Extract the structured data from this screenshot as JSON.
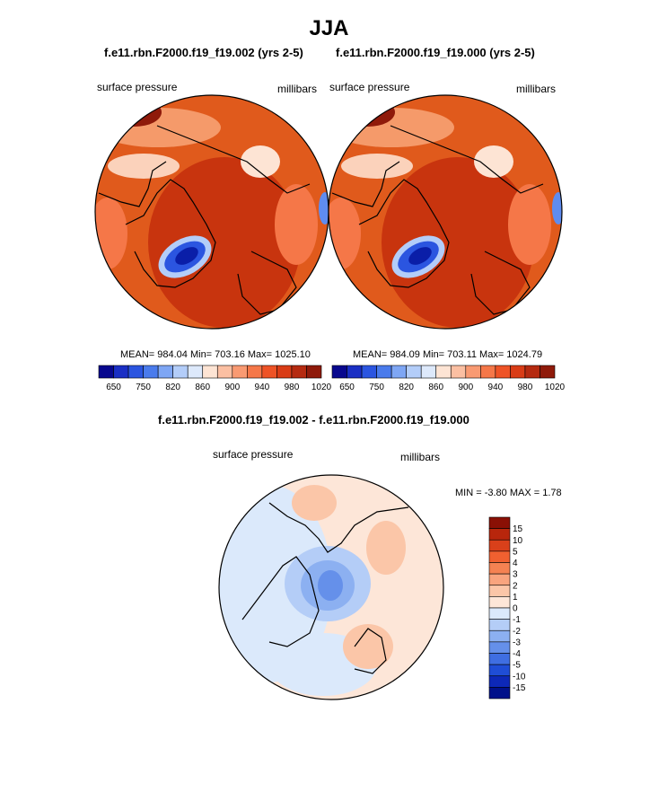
{
  "figure": {
    "title": "JJA",
    "colors": {
      "land_line": "#000000",
      "background": "#ffffff"
    }
  },
  "chart_data": [
    {
      "type": "heatmap",
      "projection": "north-polar-stereographic",
      "title": "f.e11.rbn.F2000.f19_f19.002 (yrs 2-5)",
      "left_label": "surface pressure",
      "right_label": "millibars",
      "stats": {
        "mean": "984.04",
        "min": "703.16",
        "max": "1025.10"
      },
      "stats_text": "MEAN= 984.04  Min= 703.16  Max= 1025.10",
      "colorbar": {
        "orientation": "horizontal",
        "tick_labels": [
          "650",
          "750",
          "820",
          "860",
          "900",
          "940",
          "980",
          "1020"
        ],
        "colors": [
          "#08088e",
          "#1a2fc4",
          "#2b55e0",
          "#4a7bec",
          "#7ea6f4",
          "#b3cdf9",
          "#dde9fb",
          "#fde4d4",
          "#fbbfa2",
          "#f99a72",
          "#f57748",
          "#ee5326",
          "#d93c16",
          "#b52a10",
          "#8f1a0a"
        ]
      }
    },
    {
      "type": "heatmap",
      "projection": "north-polar-stereographic",
      "title": "f.e11.rbn.F2000.f19_f19.000 (yrs 2-5)",
      "left_label": "surface pressure",
      "right_label": "millibars",
      "stats": {
        "mean": "984.09",
        "min": "703.11",
        "max": "1024.79"
      },
      "stats_text": "MEAN= 984.09  Min= 703.11  Max= 1024.79",
      "colorbar": {
        "orientation": "horizontal",
        "tick_labels": [
          "650",
          "750",
          "820",
          "860",
          "900",
          "940",
          "980",
          "1020"
        ],
        "colors": [
          "#08088e",
          "#1a2fc4",
          "#2b55e0",
          "#4a7bec",
          "#7ea6f4",
          "#b3cdf9",
          "#dde9fb",
          "#fde4d4",
          "#fbbfa2",
          "#f99a72",
          "#f57748",
          "#ee5326",
          "#d93c16",
          "#b52a10",
          "#8f1a0a"
        ]
      }
    },
    {
      "type": "heatmap",
      "projection": "north-polar-stereographic",
      "title": "f.e11.rbn.F2000.f19_f19.002 - f.e11.rbn.F2000.f19_f19.000",
      "left_label": "surface pressure",
      "right_label": "millibars",
      "stats": {
        "min": "-3.80",
        "max": "1.78"
      },
      "stats_text": "MIN =  -3.80 MAX =   1.78",
      "colorbar": {
        "orientation": "vertical",
        "tick_labels": [
          "15",
          "10",
          "5",
          "4",
          "3",
          "2",
          "1",
          "0",
          "-1",
          "-2",
          "-3",
          "-4",
          "-5",
          "-10",
          "-15"
        ],
        "colors": [
          "#8a1005",
          "#b8260c",
          "#d9401a",
          "#f06030",
          "#f58252",
          "#f9a47e",
          "#fbc6a8",
          "#fde6d8",
          "#dbe9fb",
          "#b4cdf7",
          "#8cb0f1",
          "#6590ea",
          "#3f6ee2",
          "#1f4dd6",
          "#0d28b8",
          "#00108a"
        ]
      }
    }
  ]
}
